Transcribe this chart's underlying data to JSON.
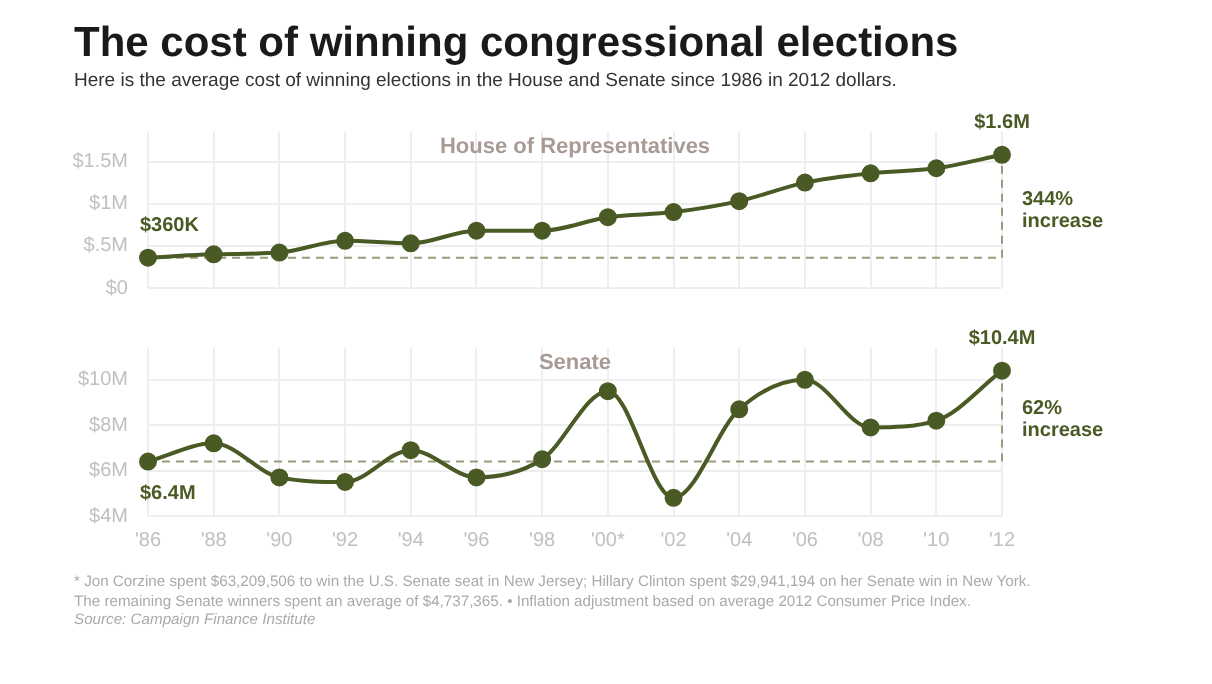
{
  "chart_data": [
    {
      "type": "line",
      "title": "The cost of winning congressional elections",
      "subtitle": "Here is the average cost of winning elections in the House and Senate since 1986 in 2012 dollars.",
      "categories": [
        "'86",
        "'88",
        "'90",
        "'92",
        "'94",
        "'96",
        "'98",
        "'00*",
        "'02",
        "'04",
        "'06",
        "'08",
        "'10",
        "'12"
      ],
      "series": [
        {
          "color": "#4a5a25",
          "values": [
            0.36,
            0.4,
            0.42,
            0.56,
            0.53,
            0.68,
            0.68,
            0.84,
            0.9,
            1.03,
            1.25,
            1.36,
            1.42,
            1.58
          ]
        }
      ],
      "ylim": [
        0,
        1.85
      ],
      "yticks": [
        {
          "value": 0,
          "label": "$0"
        },
        {
          "value": 0.5,
          "label": "$.5M"
        },
        {
          "value": 1,
          "label": "$1M"
        },
        {
          "value": 1.5,
          "label": "$1.5M"
        }
      ],
      "tick_labels": "y",
      "grid": true,
      "marker": "circle",
      "line_style": "solid",
      "ref_lines": [
        {
          "axis": "y",
          "value": 0.36,
          "color": "#9a9a7a",
          "line_style": "dashed"
        },
        {
          "axis": "x",
          "value": "'12",
          "color": "#9a9a7a",
          "line_style": "dashed"
        }
      ],
      "annotations": [
        "House of Representatives",
        {
          "text": "$360K",
          "x": "'86",
          "y": 0.36
        },
        {
          "text": "$1.6M",
          "x": "'12",
          "y": 1.58
        },
        {
          "text": "344%\nincrease",
          "x": "'12",
          "y": 0.92
        }
      ]
    },
    {
      "type": "line",
      "categories": [
        "'86",
        "'88",
        "'90",
        "'92",
        "'94",
        "'96",
        "'98",
        "'00*",
        "'02",
        "'04",
        "'06",
        "'08",
        "'10",
        "'12"
      ],
      "series": [
        {
          "color": "#4a5a25",
          "values": [
            6.4,
            7.2,
            5.7,
            5.5,
            6.9,
            5.7,
            6.5,
            9.5,
            4.8,
            8.7,
            10.0,
            7.9,
            8.2,
            10.4
          ]
        }
      ],
      "ylim": [
        4,
        11.4
      ],
      "yticks": [
        {
          "value": 4,
          "label": "$4M"
        },
        {
          "value": 6,
          "label": "$6M"
        },
        {
          "value": 8,
          "label": "$8M"
        },
        {
          "value": 10,
          "label": "$10M"
        }
      ],
      "grid": true,
      "marker": "circle",
      "line_style": "solid",
      "ref_lines": [
        {
          "axis": "y",
          "value": 6.4,
          "color": "#9a9a7a",
          "line_style": "dashed"
        },
        {
          "axis": "x",
          "value": "'12",
          "color": "#9a9a7a",
          "line_style": "dashed"
        }
      ],
      "annotations": [
        "Senate",
        {
          "text": "$6.4M",
          "x": "'86",
          "y": 6.4
        },
        {
          "text": "$10.4M",
          "x": "'12",
          "y": 10.4
        },
        {
          "text": "62%\nincrease",
          "x": "'12",
          "y": 8.23
        },
        "* Jon Corzine spent $63,209,506 to win the U.S. Senate seat in New Jersey; Hillary Clinton spent $29,941,194 on her Senate win in New York.\nThe remaining Senate winners spent an average of $4,737,365. • Inflation adjustment based on average 2012 Consumer Price Index.",
        "Source: Campaign Finance Institute"
      ]
    }
  ]
}
